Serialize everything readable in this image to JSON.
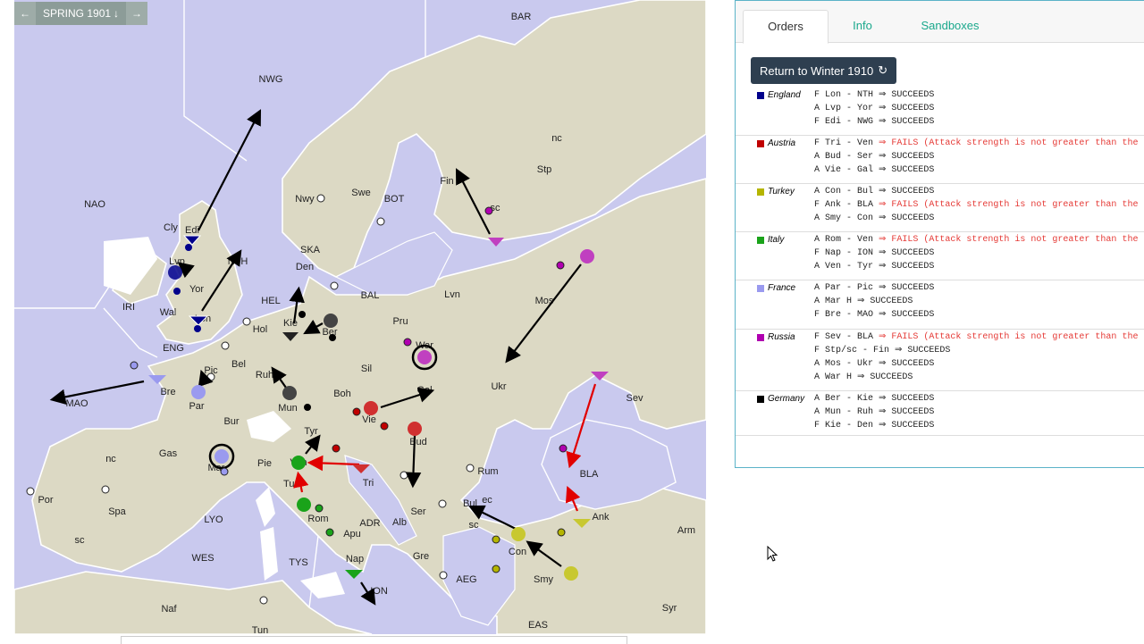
{
  "phase": {
    "label": "SPRING 1901",
    "prev_icon": "arrow-left-icon",
    "next_icon": "arrow-right-icon",
    "dropdown_icon": "arrow-down-icon"
  },
  "map": {
    "labels": {
      "nwg": "NWG",
      "bar": "BAR",
      "nao": "NAO",
      "cly": "Cly",
      "edi": "Edi",
      "lvp": "Lvp",
      "nth": "NTH",
      "yor": "Yor",
      "iri": "IRI",
      "wal": "Wal",
      "lon": "Lon",
      "eng": "ENG",
      "mao": "MAO",
      "bre": "Bre",
      "pic": "Pic",
      "par": "Par",
      "bel": "Bel",
      "hol": "Hol",
      "hel": "HEL",
      "den": "Den",
      "ska": "SKA",
      "nwy": "Nwy",
      "swe": "Swe",
      "bot": "BOT",
      "fin": "Fin",
      "stp": "Stp",
      "nc1": "nc",
      "sc1": "sc",
      "bal": "BAL",
      "lvn": "Lvn",
      "pru": "Pru",
      "kie": "Kie",
      "ber": "Ber",
      "ruh": "Ruh",
      "mun": "Mun",
      "sil": "Sil",
      "war": "War",
      "mos": "Mos",
      "ukr": "Ukr",
      "boh": "Boh",
      "gal": "Gal",
      "vie": "Vie",
      "tyr": "Tyr",
      "bud": "Bud",
      "bur": "Bur",
      "gas": "Gas",
      "mar": "Mar",
      "pie": "Pie",
      "ven": "Ven",
      "tri": "Tri",
      "rum": "Rum",
      "sev": "Sev",
      "bla": "BLA",
      "nc2": "nc",
      "spa": "Spa",
      "por": "Por",
      "sc2": "sc",
      "lyo": "LYO",
      "tus": "Tus",
      "rom": "Rom",
      "adr": "ADR",
      "ser": "Ser",
      "bul": "Bul",
      "ec": "ec",
      "sc3": "sc",
      "alb": "Alb",
      "apu": "Apu",
      "con": "Con",
      "ank": "Ank",
      "arm": "Arm",
      "wes": "WES",
      "tys": "TYS",
      "nap": "Nap",
      "gre": "Gre",
      "aeg": "AEG",
      "smy": "Smy",
      "ion": "ION",
      "naf": "Naf",
      "tun": "Tun",
      "eas": "EAS",
      "syr": "Syr"
    }
  },
  "tabs": {
    "orders": "Orders",
    "info": "Info",
    "sandboxes": "Sandboxes"
  },
  "return_button": {
    "label": "Return to Winter 1910",
    "icon": "refresh-icon"
  },
  "powers": [
    {
      "name": "England",
      "color": "#00008b",
      "orders": [
        {
          "text": "F Lon - NTH ⇒ SUCCEEDS"
        },
        {
          "text": "A Lvp - Yor ⇒ SUCCEEDS"
        },
        {
          "text": "F Edi - NWG ⇒ SUCCEEDS"
        }
      ]
    },
    {
      "name": "Austria",
      "color": "#c00000",
      "orders": [
        {
          "text": "F Tri - Ven ",
          "fail": "⇒ FAILS (Attack strength is not greater than the p"
        },
        {
          "text": "A Bud - Ser ⇒ SUCCEEDS"
        },
        {
          "text": "A Vie - Gal ⇒ SUCCEEDS"
        }
      ]
    },
    {
      "name": "Turkey",
      "color": "#b5b500",
      "orders": [
        {
          "text": "A Con - Bul ⇒ SUCCEEDS"
        },
        {
          "text": "F Ank - BLA ",
          "fail": "⇒ FAILS (Attack strength is not greater than the p"
        },
        {
          "text": "A Smy - Con ⇒ SUCCEEDS"
        }
      ]
    },
    {
      "name": "Italy",
      "color": "#1aa31a",
      "orders": [
        {
          "text": "A Rom - Ven ",
          "fail": "⇒ FAILS (Attack strength is not greater than the p"
        },
        {
          "text": "F Nap - ION ⇒ SUCCEEDS"
        },
        {
          "text": "A Ven - Tyr ⇒ SUCCEEDS"
        }
      ]
    },
    {
      "name": "France",
      "color": "#9a9aef",
      "orders": [
        {
          "text": "A Par - Pic ⇒ SUCCEEDS"
        },
        {
          "text": "A Mar H ⇒ SUCCEEDS"
        },
        {
          "text": "F Bre - MAO ⇒ SUCCEEDS"
        }
      ]
    },
    {
      "name": "Russia",
      "color": "#b000b0",
      "orders": [
        {
          "text": "F Sev - BLA ",
          "fail": "⇒ FAILS (Attack strength is not greater than the p"
        },
        {
          "text": "F Stp/sc - Fin ⇒ SUCCEEDS"
        },
        {
          "text": "A Mos - Ukr ⇒ SUCCEEDS"
        },
        {
          "text": "A War H ⇒ SUCCEEDS"
        }
      ]
    },
    {
      "name": "Germany",
      "color": "#000000",
      "orders": [
        {
          "text": "A Ber - Kie ⇒ SUCCEEDS"
        },
        {
          "text": "A Mun - Ruh ⇒ SUCCEEDS"
        },
        {
          "text": "F Kie - Den ⇒ SUCCEEDS"
        }
      ]
    }
  ]
}
